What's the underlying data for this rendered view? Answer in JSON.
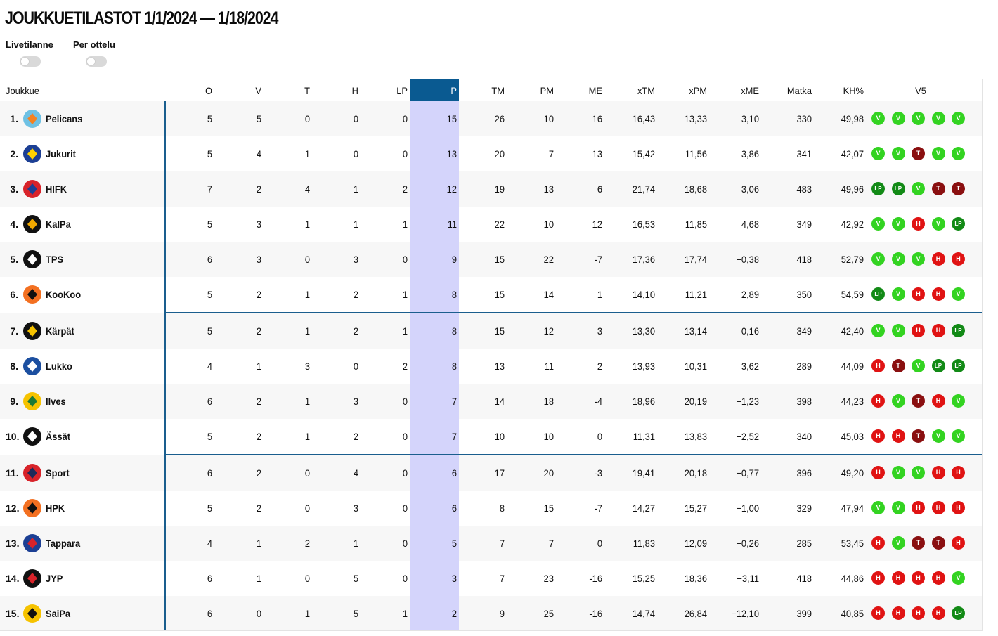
{
  "title": "JOUKKUETILASTOT 1/1/2024 — 1/18/2024",
  "toggles": [
    {
      "label": "Livetilanne",
      "on": false
    },
    {
      "label": "Per ottelu",
      "on": false
    }
  ],
  "columns": [
    "Joukkue",
    "O",
    "V",
    "T",
    "H",
    "LP",
    "P",
    "TM",
    "PM",
    "ME",
    "xTM",
    "xPM",
    "xME",
    "Matka",
    "KH%",
    "V5"
  ],
  "colors": {
    "accent": "#0a5a91",
    "highlight": "#d4d4fb",
    "win": "#33d321",
    "loss": "#e01313",
    "tie": "#8a0f10",
    "ot_loss": "#128a16"
  },
  "teams": [
    {
      "rank": "1.",
      "name": "Pelicans",
      "logo": "pelicans-logo",
      "stats": [
        "5",
        "5",
        "0",
        "0",
        "0",
        "15",
        "26",
        "10",
        "16",
        "16,43",
        "13,33",
        "3,10",
        "330",
        "49,98"
      ],
      "v5": [
        "V",
        "V",
        "V",
        "V",
        "V"
      ]
    },
    {
      "rank": "2.",
      "name": "Jukurit",
      "logo": "jukurit-logo",
      "stats": [
        "5",
        "4",
        "1",
        "0",
        "0",
        "13",
        "20",
        "7",
        "13",
        "15,42",
        "11,56",
        "3,86",
        "341",
        "42,07"
      ],
      "v5": [
        "V",
        "V",
        "T",
        "V",
        "V"
      ]
    },
    {
      "rank": "3.",
      "name": "HIFK",
      "logo": "hifk-logo",
      "stats": [
        "7",
        "2",
        "4",
        "1",
        "2",
        "12",
        "19",
        "13",
        "6",
        "21,74",
        "18,68",
        "3,06",
        "483",
        "49,96"
      ],
      "v5": [
        "LP",
        "LP",
        "V",
        "T",
        "T"
      ]
    },
    {
      "rank": "4.",
      "name": "KalPa",
      "logo": "kalpa-logo",
      "stats": [
        "5",
        "3",
        "1",
        "1",
        "1",
        "11",
        "22",
        "10",
        "12",
        "16,53",
        "11,85",
        "4,68",
        "349",
        "42,92"
      ],
      "v5": [
        "V",
        "V",
        "H",
        "V",
        "LP"
      ]
    },
    {
      "rank": "5.",
      "name": "TPS",
      "logo": "tps-logo",
      "stats": [
        "6",
        "3",
        "0",
        "3",
        "0",
        "9",
        "15",
        "22",
        "-7",
        "17,36",
        "17,74",
        "−0,38",
        "418",
        "52,79"
      ],
      "v5": [
        "V",
        "V",
        "V",
        "H",
        "H"
      ]
    },
    {
      "rank": "6.",
      "name": "KooKoo",
      "logo": "kookoo-logo",
      "stats": [
        "5",
        "2",
        "1",
        "2",
        "1",
        "8",
        "15",
        "14",
        "1",
        "14,10",
        "11,21",
        "2,89",
        "350",
        "54,59"
      ],
      "v5": [
        "LP",
        "V",
        "H",
        "H",
        "V"
      ]
    },
    {
      "rank": "7.",
      "name": "Kärpät",
      "logo": "karpat-logo",
      "stats": [
        "5",
        "2",
        "1",
        "2",
        "1",
        "8",
        "15",
        "12",
        "3",
        "13,30",
        "13,14",
        "0,16",
        "349",
        "42,40"
      ],
      "v5": [
        "V",
        "V",
        "H",
        "H",
        "LP"
      ]
    },
    {
      "rank": "8.",
      "name": "Lukko",
      "logo": "lukko-logo",
      "stats": [
        "4",
        "1",
        "3",
        "0",
        "2",
        "8",
        "13",
        "11",
        "2",
        "13,93",
        "10,31",
        "3,62",
        "289",
        "44,09"
      ],
      "v5": [
        "H",
        "T",
        "V",
        "LP",
        "LP"
      ]
    },
    {
      "rank": "9.",
      "name": "Ilves",
      "logo": "ilves-logo",
      "stats": [
        "6",
        "2",
        "1",
        "3",
        "0",
        "7",
        "14",
        "18",
        "-4",
        "18,96",
        "20,19",
        "−1,23",
        "398",
        "44,23"
      ],
      "v5": [
        "H",
        "V",
        "T",
        "H",
        "V"
      ]
    },
    {
      "rank": "10.",
      "name": "Ässät",
      "logo": "assat-logo",
      "stats": [
        "5",
        "2",
        "1",
        "2",
        "0",
        "7",
        "10",
        "10",
        "0",
        "11,31",
        "13,83",
        "−2,52",
        "340",
        "45,03"
      ],
      "v5": [
        "H",
        "H",
        "T",
        "V",
        "V"
      ]
    },
    {
      "rank": "11.",
      "name": "Sport",
      "logo": "sport-logo",
      "stats": [
        "6",
        "2",
        "0",
        "4",
        "0",
        "6",
        "17",
        "20",
        "-3",
        "19,41",
        "20,18",
        "−0,77",
        "396",
        "49,20"
      ],
      "v5": [
        "H",
        "V",
        "V",
        "H",
        "H"
      ]
    },
    {
      "rank": "12.",
      "name": "HPK",
      "logo": "hpk-logo",
      "stats": [
        "5",
        "2",
        "0",
        "3",
        "0",
        "6",
        "8",
        "15",
        "-7",
        "14,27",
        "15,27",
        "−1,00",
        "329",
        "47,94"
      ],
      "v5": [
        "V",
        "V",
        "H",
        "H",
        "H"
      ]
    },
    {
      "rank": "13.",
      "name": "Tappara",
      "logo": "tappara-logo",
      "stats": [
        "4",
        "1",
        "2",
        "1",
        "0",
        "5",
        "7",
        "7",
        "0",
        "11,83",
        "12,09",
        "−0,26",
        "285",
        "53,45"
      ],
      "v5": [
        "H",
        "V",
        "T",
        "T",
        "H"
      ]
    },
    {
      "rank": "14.",
      "name": "JYP",
      "logo": "jyp-logo",
      "stats": [
        "6",
        "1",
        "0",
        "5",
        "0",
        "3",
        "7",
        "23",
        "-16",
        "15,25",
        "18,36",
        "−3,11",
        "418",
        "44,86"
      ],
      "v5": [
        "H",
        "H",
        "H",
        "H",
        "V"
      ]
    },
    {
      "rank": "15.",
      "name": "SaiPa",
      "logo": "saipa-logo",
      "stats": [
        "6",
        "0",
        "1",
        "5",
        "1",
        "2",
        "9",
        "25",
        "-16",
        "14,74",
        "26,84",
        "−12,10",
        "399",
        "40,85"
      ],
      "v5": [
        "H",
        "H",
        "H",
        "H",
        "LP"
      ]
    }
  ]
}
